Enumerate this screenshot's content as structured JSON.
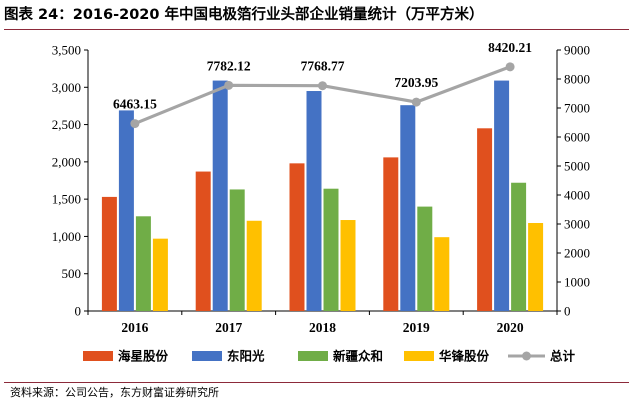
{
  "figure": {
    "title": "图表 24：2016-2020 年中国电极箔行业头部企业销量统计（万平方米）",
    "source": "资料来源：公司公告，东方财富证券研究所"
  },
  "colors": {
    "海星股份": "#e0501e",
    "东阳光": "#4472c4",
    "新疆众和": "#70ad47",
    "华锋股份": "#ffc000",
    "总计": "#a5a5a5",
    "rule": "#8c2a3a"
  },
  "chart_data": {
    "type": "bar",
    "title": "2016-2020 年中国电极箔行业头部企业销量统计（万平方米）",
    "categories": [
      "2016",
      "2017",
      "2018",
      "2019",
      "2020"
    ],
    "series": [
      {
        "name": "海星股份",
        "values": [
          1530,
          1870,
          1980,
          2060,
          2450
        ]
      },
      {
        "name": "东阳光",
        "values": [
          2690,
          3090,
          2950,
          2760,
          3090
        ]
      },
      {
        "name": "新疆众和",
        "values": [
          1270,
          1630,
          1640,
          1400,
          1720
        ]
      },
      {
        "name": "华锋股份",
        "values": [
          970,
          1210,
          1220,
          990,
          1180
        ]
      }
    ],
    "line_series": {
      "name": "总计",
      "axis": "right",
      "values": [
        6463.15,
        7782.12,
        7768.77,
        7203.95,
        8420.21
      ],
      "labels": [
        "6463.15",
        "7782.12",
        "7768.77",
        "7203.95",
        "8420.21"
      ]
    },
    "y_left": {
      "ylim": [
        0,
        3500
      ],
      "ticks": [
        0,
        500,
        1000,
        1500,
        2000,
        2500,
        3000,
        3500
      ],
      "tick_labels": [
        "0",
        "500",
        "1,000",
        "1,500",
        "2,000",
        "2,500",
        "3,000",
        "3,500"
      ]
    },
    "y_right": {
      "ylim": [
        0,
        9000
      ],
      "ticks": [
        0,
        1000,
        2000,
        3000,
        4000,
        5000,
        6000,
        7000,
        8000,
        9000
      ],
      "tick_labels": [
        "0",
        "1000",
        "2000",
        "3000",
        "4000",
        "5000",
        "6000",
        "7000",
        "8000",
        "9000"
      ]
    },
    "legend": {
      "position": "bottom",
      "items": [
        "海星股份",
        "东阳光",
        "新疆众和",
        "华锋股份",
        "总计"
      ]
    },
    "grid": false
  }
}
